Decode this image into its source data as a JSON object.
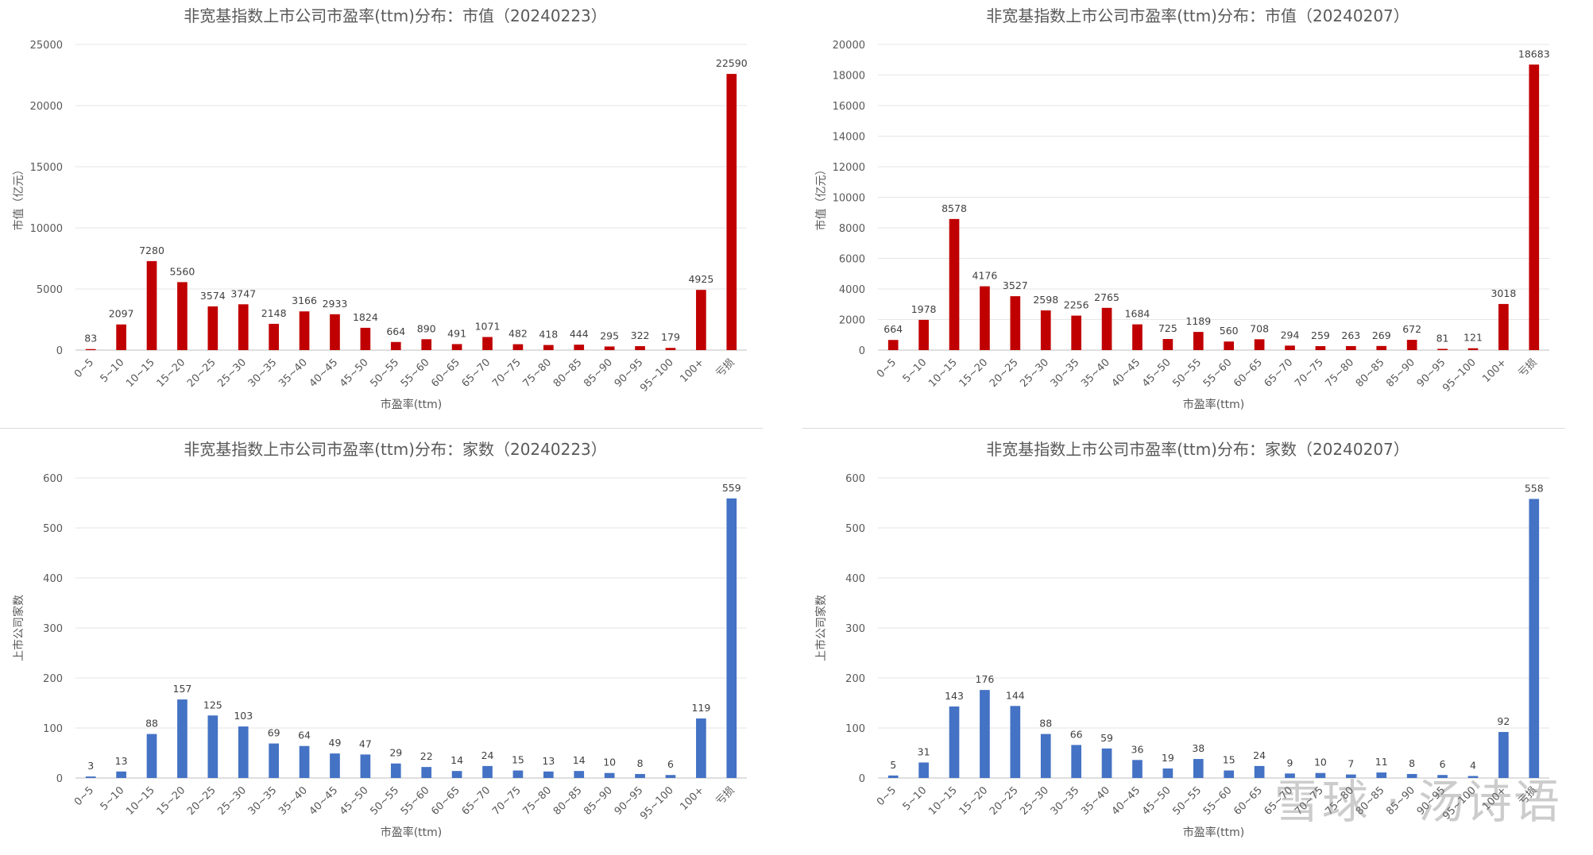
{
  "watermark": "雪球 · 汤诗语",
  "colors": {
    "red": "#c00000",
    "blue": "#4472c4",
    "grid": "#e6e6e6",
    "text": "#595959"
  },
  "chart_data": [
    {
      "type": "bar",
      "title": "非宽基指数上市公司市盈率(ttm)分布：市值（20240223）",
      "xlabel": "市盈率(ttm)",
      "ylabel": "市值（亿元）",
      "ylim": [
        0,
        25000
      ],
      "yticks": [
        0,
        5000,
        10000,
        15000,
        20000,
        25000
      ],
      "grid": true,
      "color": "#c00000",
      "categories": [
        "0~5",
        "5~10",
        "10~15",
        "15~20",
        "20~25",
        "25~30",
        "30~35",
        "35~40",
        "40~45",
        "45~50",
        "50~55",
        "55~60",
        "60~65",
        "65~70",
        "70~75",
        "75~80",
        "80~85",
        "85~90",
        "90~95",
        "95~100",
        "100+",
        "亏损"
      ],
      "values": [
        83,
        2097,
        7280,
        5560,
        3574,
        3747,
        2148,
        3166,
        2933,
        1824,
        664,
        890,
        491,
        1071,
        482,
        418,
        444,
        295,
        322,
        179,
        4925,
        22590
      ]
    },
    {
      "type": "bar",
      "title": "非宽基指数上市公司市盈率(ttm)分布：市值（20240207）",
      "xlabel": "市盈率(ttm)",
      "ylabel": "市值（亿元）",
      "ylim": [
        0,
        20000
      ],
      "yticks": [
        0,
        2000,
        4000,
        6000,
        8000,
        10000,
        12000,
        14000,
        16000,
        18000,
        20000
      ],
      "grid": true,
      "color": "#c00000",
      "categories": [
        "0~5",
        "5~10",
        "10~15",
        "15~20",
        "20~25",
        "25~30",
        "30~35",
        "35~40",
        "40~45",
        "45~50",
        "50~55",
        "55~60",
        "60~65",
        "65~70",
        "70~75",
        "75~80",
        "80~85",
        "85~90",
        "90~95",
        "95~100",
        "100+",
        "亏损"
      ],
      "values": [
        664,
        1978,
        8578,
        4176,
        3527,
        2598,
        2256,
        2765,
        1684,
        725,
        1189,
        560,
        708,
        294,
        259,
        263,
        269,
        672,
        81,
        121,
        3018,
        18683
      ]
    },
    {
      "type": "bar",
      "title": "非宽基指数上市公司市盈率(ttm)分布：家数（20240223）",
      "xlabel": "市盈率(ttm)",
      "ylabel": "上市公司家数",
      "ylim": [
        0,
        600
      ],
      "yticks": [
        0,
        100,
        200,
        300,
        400,
        500,
        600
      ],
      "grid": true,
      "color": "#4472c4",
      "categories": [
        "0~5",
        "5~10",
        "10~15",
        "15~20",
        "20~25",
        "25~30",
        "30~35",
        "35~40",
        "40~45",
        "45~50",
        "50~55",
        "55~60",
        "60~65",
        "65~70",
        "70~75",
        "75~80",
        "80~85",
        "85~90",
        "90~95",
        "95~100",
        "100+",
        "亏损"
      ],
      "values": [
        3,
        13,
        88,
        157,
        125,
        103,
        69,
        64,
        49,
        47,
        29,
        22,
        14,
        24,
        15,
        13,
        14,
        10,
        8,
        6,
        119,
        559
      ]
    },
    {
      "type": "bar",
      "title": "非宽基指数上市公司市盈率(ttm)分布：家数（20240207）",
      "xlabel": "市盈率(ttm)",
      "ylabel": "上市公司家数",
      "ylim": [
        0,
        600
      ],
      "yticks": [
        0,
        100,
        200,
        300,
        400,
        500,
        600
      ],
      "grid": true,
      "color": "#4472c4",
      "categories": [
        "0~5",
        "5~10",
        "10~15",
        "15~20",
        "20~25",
        "25~30",
        "30~35",
        "35~40",
        "40~45",
        "45~50",
        "50~55",
        "55~60",
        "60~65",
        "65~70",
        "70~75",
        "75~80",
        "80~85",
        "85~90",
        "90~95",
        "95~100",
        "100+",
        "亏损"
      ],
      "values": [
        5,
        31,
        143,
        176,
        144,
        88,
        66,
        59,
        36,
        19,
        38,
        15,
        24,
        9,
        10,
        7,
        11,
        8,
        6,
        4,
        92,
        558
      ]
    }
  ]
}
